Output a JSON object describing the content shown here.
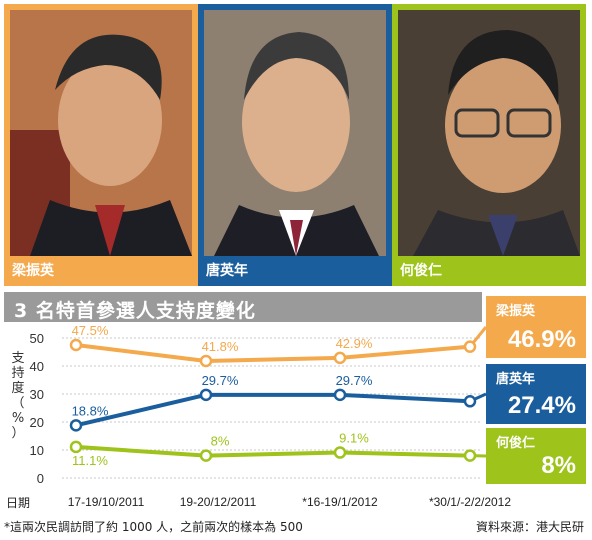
{
  "candidates": [
    {
      "name": "梁振英",
      "color": "#F3A94C"
    },
    {
      "name": "唐英年",
      "color": "#1B5E9E"
    },
    {
      "name": "何俊仁",
      "color": "#9EC31B"
    }
  ],
  "title": "3 名特首參選人支持度變化",
  "x_label": "日期",
  "footnote": "*這兩次民調訪問了約 1000 人，之前兩次的樣本為 500",
  "source": "資料來源：港大民研",
  "chart_data": {
    "type": "line",
    "categories": [
      "17-19/10/2011",
      "19-20/12/2011",
      "*16-19/1/2012",
      "*30/1/-2/2/2012"
    ],
    "ylabel": "支持度（%）",
    "ylim": [
      0,
      50
    ],
    "yticks": [
      0,
      10,
      20,
      30,
      40,
      50
    ],
    "grid": true,
    "series": [
      {
        "name": "梁振英",
        "color": "#F3A94C",
        "values": [
          47.5,
          41.8,
          42.9,
          46.9
        ],
        "labels": [
          "47.5%",
          "41.8%",
          "42.9%",
          ""
        ],
        "final_label": "46.9%"
      },
      {
        "name": "唐英年",
        "color": "#1B5E9E",
        "values": [
          18.8,
          29.7,
          29.7,
          27.4
        ],
        "labels": [
          "18.8%",
          "29.7%",
          "29.7%",
          ""
        ],
        "final_label": "27.4%"
      },
      {
        "name": "何俊仁",
        "color": "#9EC31B",
        "values": [
          11.1,
          8,
          9.1,
          8
        ],
        "labels": [
          "11.1%",
          "8%",
          "9.1%",
          ""
        ],
        "final_label": "8%"
      }
    ]
  }
}
